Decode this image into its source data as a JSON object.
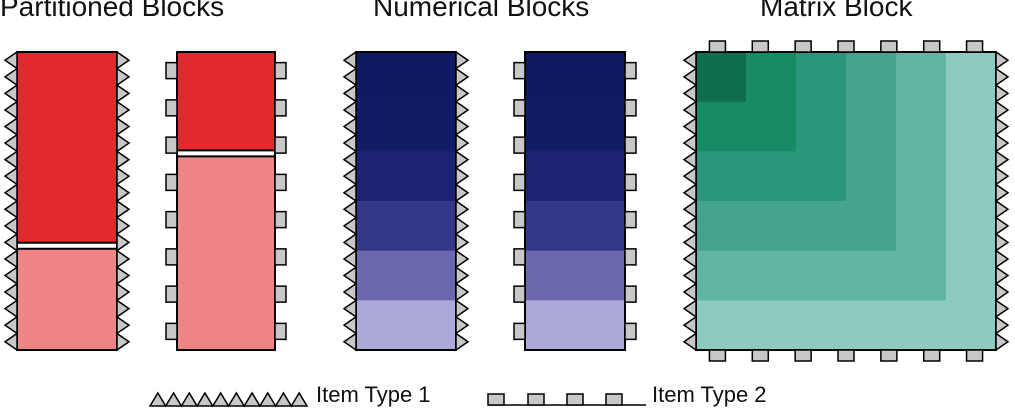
{
  "titles": {
    "partitioned": "Partitioned Blocks",
    "numerical": "Numerical Blocks",
    "matrix": "Matrix Block"
  },
  "legend": {
    "item_type_1": "Item Type 1",
    "item_type_2": "Item Type 2"
  },
  "colors": {
    "partition_dark": "#e3292b",
    "partition_light": "#f08487",
    "numerical_gradient": [
      "#0f1a63",
      "#111c66",
      "#1c2471",
      "#353889",
      "#6c68ad",
      "#aca8d8"
    ],
    "matrix_levels": [
      "#0e6e4e",
      "#178a66",
      "#2b977a",
      "#45a58c",
      "#62b6a1",
      "#8ccbbd"
    ],
    "item_fill": "#c8c8c8",
    "outline": "#000000"
  },
  "partitioned_blocks": [
    {
      "dark_fraction": 0.65,
      "left_item": "type-1",
      "right_item": "type-1"
    },
    {
      "dark_fraction": 0.34,
      "left_item": "type-2",
      "right_item": "type-2"
    }
  ],
  "numerical_blocks": [
    {
      "segments": 6,
      "left_item": "type-1",
      "right_item": "type-1"
    },
    {
      "segments": 6,
      "left_item": "type-2",
      "right_item": "type-2"
    }
  ],
  "matrix_block": {
    "levels": 6,
    "left_item": "type-1",
    "right_item": "type-1",
    "top_item": "type-2",
    "bottom_item": "type-2"
  },
  "icons": {
    "item_type_1": "sawtooth-triangle-icon",
    "item_type_2": "square-tab-icon"
  }
}
